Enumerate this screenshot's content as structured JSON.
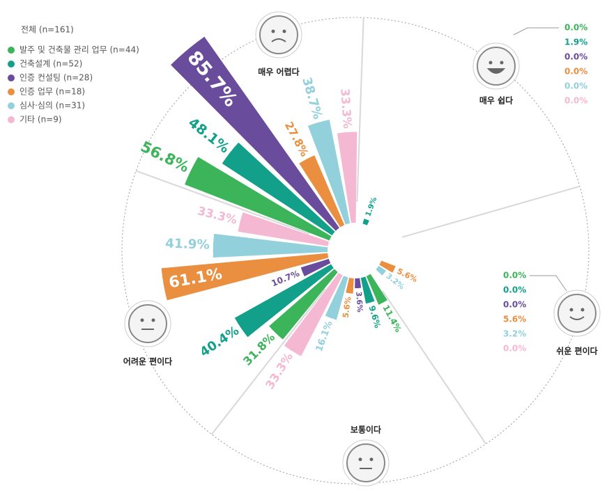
{
  "chart_data": {
    "type": "radial-bar",
    "legend_title": "전체 (n=161)",
    "categories": [
      "매우 쉽다",
      "쉬운 편이다",
      "보통이다",
      "어려운 편이다",
      "매우 어렵다"
    ],
    "series": [
      {
        "name": "발주 및 건축물 관리 업무 (n=44)",
        "color": "#3cb45a",
        "values": [
          0,
          0,
          11.4,
          31.8,
          56.8
        ],
        "value_labels": [
          "0.0%",
          "0.0%",
          "11.4%",
          "31.8%",
          "56.8%"
        ]
      },
      {
        "name": "건축설계 (n=52)",
        "color": "#12a08a",
        "values": [
          1.9,
          0,
          9.6,
          40.4,
          48.1
        ],
        "value_labels": [
          "1.9%",
          "0.0%",
          "9.6%",
          "40.4%",
          "48.1%"
        ]
      },
      {
        "name": "인증 컨설팅 (n=28)",
        "color": "#6a4c9c",
        "values": [
          0,
          0,
          3.6,
          10.7,
          85.7
        ],
        "value_labels": [
          "0.0%",
          "0.0%",
          "3.6%",
          "10.7%",
          "85.7%"
        ]
      },
      {
        "name": "인증 업무 (n=18)",
        "color": "#ea8e3f",
        "values": [
          0,
          5.6,
          5.6,
          61.1,
          27.8
        ],
        "value_labels": [
          "0.0%",
          "5.6%",
          "5.6%",
          "61.1%",
          "27.8%"
        ]
      },
      {
        "name": "심사·심의 (n=31)",
        "color": "#92d0dc",
        "values": [
          0,
          3.2,
          16.1,
          41.9,
          38.7
        ],
        "value_labels": [
          "0.0%",
          "3.2%",
          "16.1%",
          "41.9%",
          "38.7%"
        ]
      },
      {
        "name": "기타 (n=9)",
        "color": "#f4b8d2",
        "values": [
          0,
          0,
          33.3,
          33.3,
          33.3
        ],
        "value_labels": [
          "0.0%",
          "0.0%",
          "33.3%",
          "33.3%",
          "33.3%"
        ]
      }
    ]
  }
}
